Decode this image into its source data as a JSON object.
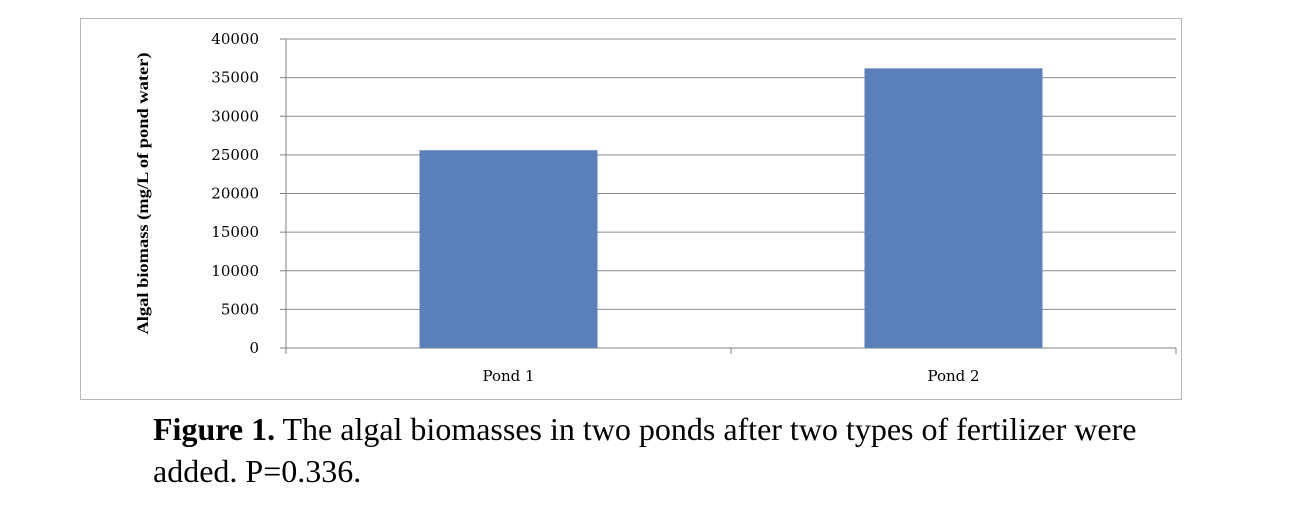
{
  "chart_data": {
    "type": "bar",
    "categories": [
      "Pond 1",
      "Pond 2"
    ],
    "values": [
      25600,
      36200
    ],
    "xlabel": "",
    "ylabel": "Algal biomass (mg/L of pond water)",
    "ylim": [
      0,
      40000
    ],
    "yticks": [
      0,
      5000,
      10000,
      15000,
      20000,
      25000,
      30000,
      35000,
      40000
    ],
    "grid": true,
    "legend": "none",
    "bar_color": "#5b7fb8",
    "gridline_color": "#8c8c8c"
  },
  "caption": {
    "label": "Figure 1.",
    "text": "The algal biomasses in two ponds after two types of fertilizer were added.  P=0.336."
  }
}
